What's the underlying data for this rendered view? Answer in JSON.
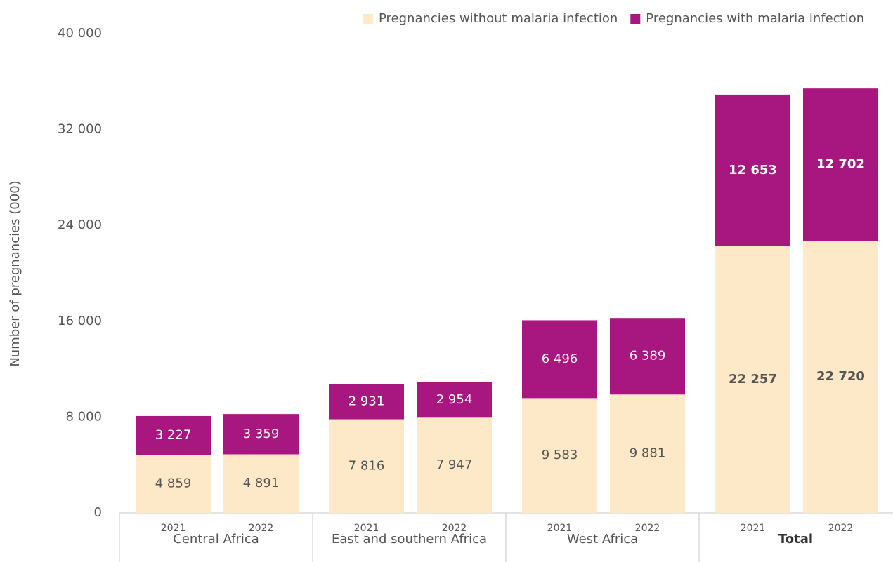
{
  "chart_data": {
    "type": "stacked_bar",
    "y_label": "Number of pregnancies (000)",
    "categories": [
      "2021",
      "2022",
      "2021",
      "2022",
      "2021",
      "2022",
      "2021",
      "2022"
    ],
    "groups": [
      "Central Africa",
      "East and southern Africa",
      "West Africa",
      "Total"
    ],
    "series": [
      {
        "name": "Pregnancies without malaria infection",
        "color": "#fde8c8",
        "values": [
          4859,
          4891,
          7816,
          7947,
          9583,
          9881,
          22257,
          22720
        ],
        "value_labels": [
          "4 859",
          "4 891",
          "7 816",
          "7 947",
          "9 583",
          "9 881",
          "22 257",
          "22 720"
        ]
      },
      {
        "name": "Pregnancies with malaria infection",
        "color": "#a8177f",
        "values": [
          3227,
          3359,
          2931,
          2954,
          6496,
          6389,
          12653,
          12702
        ],
        "value_labels": [
          "3 227",
          "3 359",
          "2 931",
          "2 954",
          "6 496",
          "6 389",
          "12 653",
          "12 702"
        ]
      }
    ],
    "ylim": [
      0,
      40000
    ],
    "yticks": [
      {
        "value": 0,
        "label": "0"
      },
      {
        "value": 8000,
        "label": "8 000"
      },
      {
        "value": 16000,
        "label": "16 000"
      },
      {
        "value": 24000,
        "label": "24 000"
      },
      {
        "value": 32000,
        "label": "32 000"
      },
      {
        "value": 40000,
        "label": "40 000"
      }
    ],
    "grid": false,
    "legend": "top-right"
  }
}
